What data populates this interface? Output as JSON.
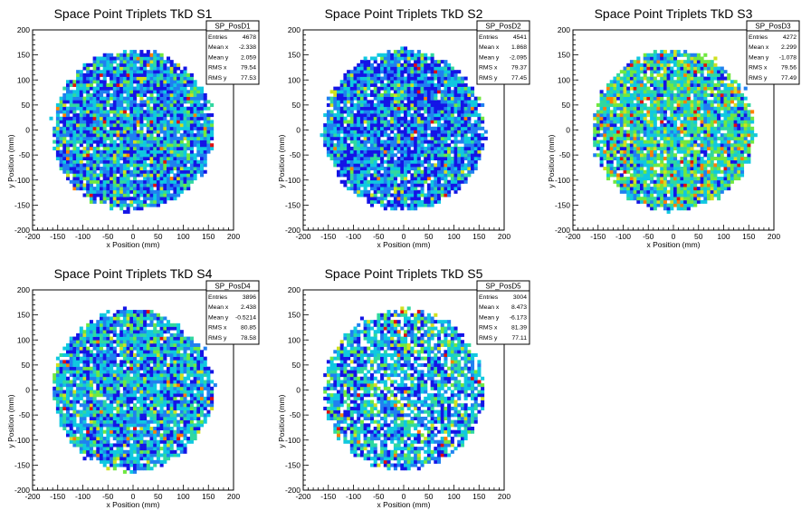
{
  "chart_data": [
    {
      "type": "heatmap",
      "title": "Space Point Triplets TkD S1",
      "xlabel": "x Position (mm)",
      "ylabel": "y Position (mm)",
      "xlim": [
        -200,
        200
      ],
      "ylim": [
        -200,
        200
      ],
      "x_ticks": [
        "-200",
        "-150",
        "-100",
        "-50",
        "0",
        "50",
        "100",
        "150",
        "200"
      ],
      "y_ticks": [
        "-200",
        "-150",
        "-100",
        "-50",
        "0",
        "50",
        "100",
        "150",
        "200"
      ],
      "stats": {
        "name": "SP_PosD1",
        "rows": [
          {
            "label": "Entries",
            "value": "4678"
          },
          {
            "label": "Mean x",
            "value": "-2.338"
          },
          {
            "label": "Mean y",
            "value": "2.059"
          },
          {
            "label": "RMS x",
            "value": "79.54"
          },
          {
            "label": "RMS y",
            "value": "77.53"
          }
        ]
      },
      "entries": 4678,
      "mean_x": -2.338,
      "mean_y": 2.059,
      "rms_x": 79.54,
      "rms_y": 77.53,
      "radius": 160,
      "bins": 60,
      "empty_fraction": 0.06,
      "palette": [
        "#1414e6",
        "#2080f0",
        "#10c8e0",
        "#30d8a0",
        "#70e840",
        "#d0e020",
        "#ff8000",
        "#e01010"
      ],
      "level_weights": [
        0.26,
        0.24,
        0.26,
        0.12,
        0.07,
        0.03,
        0.01,
        0.01
      ]
    },
    {
      "type": "heatmap",
      "title": "Space Point Triplets TkD S2",
      "xlabel": "x Position (mm)",
      "ylabel": "y Position (mm)",
      "xlim": [
        -200,
        200
      ],
      "ylim": [
        -200,
        200
      ],
      "x_ticks": [
        "-200",
        "-150",
        "-100",
        "-50",
        "0",
        "50",
        "100",
        "150",
        "200"
      ],
      "y_ticks": [
        "-200",
        "-150",
        "-100",
        "-50",
        "0",
        "50",
        "100",
        "150",
        "200"
      ],
      "stats": {
        "name": "SP_PosD2",
        "rows": [
          {
            "label": "Entries",
            "value": "4541"
          },
          {
            "label": "Mean x",
            "value": "1.868"
          },
          {
            "label": "Mean y",
            "value": "-2.095"
          },
          {
            "label": "RMS x",
            "value": "79.37"
          },
          {
            "label": "RMS y",
            "value": "77.45"
          }
        ]
      },
      "entries": 4541,
      "mean_x": 1.868,
      "mean_y": -2.095,
      "rms_x": 79.37,
      "rms_y": 77.45,
      "radius": 160,
      "bins": 60,
      "empty_fraction": 0.07,
      "palette": [
        "#1414e6",
        "#2080f0",
        "#10c8e0",
        "#30d8a0",
        "#70e840",
        "#d0e020",
        "#ff8000",
        "#e01010"
      ],
      "level_weights": [
        0.34,
        0.26,
        0.22,
        0.1,
        0.05,
        0.02,
        0.005,
        0.005
      ]
    },
    {
      "type": "heatmap",
      "title": "Space Point Triplets TkD S3",
      "xlabel": "x Position (mm)",
      "ylabel": "y Position (mm)",
      "xlim": [
        -200,
        200
      ],
      "ylim": [
        -200,
        200
      ],
      "x_ticks": [
        "-200",
        "-150",
        "-100",
        "-50",
        "0",
        "50",
        "100",
        "150",
        "200"
      ],
      "y_ticks": [
        "-200",
        "-150",
        "-100",
        "-50",
        "0",
        "50",
        "100",
        "150",
        "200"
      ],
      "stats": {
        "name": "SP_PosD3",
        "rows": [
          {
            "label": "Entries",
            "value": "4272"
          },
          {
            "label": "Mean x",
            "value": "2.299"
          },
          {
            "label": "Mean y",
            "value": "-1.078"
          },
          {
            "label": "RMS x",
            "value": "79.56"
          },
          {
            "label": "RMS y",
            "value": "77.49"
          }
        ]
      },
      "entries": 4272,
      "mean_x": 2.299,
      "mean_y": -1.078,
      "rms_x": 79.56,
      "rms_y": 77.49,
      "radius": 160,
      "bins": 60,
      "empty_fraction": 0.08,
      "palette": [
        "#1414e6",
        "#2080f0",
        "#10c8e0",
        "#30d8a0",
        "#70e840",
        "#d0e020",
        "#ff8000",
        "#e01010"
      ],
      "level_weights": [
        0.1,
        0.12,
        0.24,
        0.22,
        0.18,
        0.08,
        0.04,
        0.02
      ]
    },
    {
      "type": "heatmap",
      "title": "Space Point Triplets TkD S4",
      "xlabel": "x Position (mm)",
      "ylabel": "y Position (mm)",
      "xlim": [
        -200,
        200
      ],
      "ylim": [
        -200,
        200
      ],
      "x_ticks": [
        "-200",
        "-150",
        "-100",
        "-50",
        "0",
        "50",
        "100",
        "150",
        "200"
      ],
      "y_ticks": [
        "-200",
        "-150",
        "-100",
        "-50",
        "0",
        "50",
        "100",
        "150",
        "200"
      ],
      "stats": {
        "name": "SP_PosD4",
        "rows": [
          {
            "label": "Entries",
            "value": "3896"
          },
          {
            "label": "Mean x",
            "value": "2.438"
          },
          {
            "label": "Mean y",
            "value": "-0.5214"
          },
          {
            "label": "RMS x",
            "value": "80.85"
          },
          {
            "label": "RMS y",
            "value": "78.58"
          }
        ]
      },
      "entries": 3896,
      "mean_x": 2.438,
      "mean_y": -0.5214,
      "rms_x": 80.85,
      "rms_y": 78.58,
      "radius": 160,
      "bins": 60,
      "empty_fraction": 0.08,
      "palette": [
        "#1414e6",
        "#2080f0",
        "#10c8e0",
        "#30d8a0",
        "#70e840",
        "#d0e020",
        "#ff8000",
        "#e01010"
      ],
      "level_weights": [
        0.2,
        0.22,
        0.3,
        0.14,
        0.08,
        0.04,
        0.01,
        0.01
      ]
    },
    {
      "type": "heatmap",
      "title": "Space Point Triplets TkD S5",
      "xlabel": "x Position (mm)",
      "ylabel": "y Position (mm)",
      "xlim": [
        -200,
        200
      ],
      "ylim": [
        -200,
        200
      ],
      "x_ticks": [
        "-200",
        "-150",
        "-100",
        "-50",
        "0",
        "50",
        "100",
        "150",
        "200"
      ],
      "y_ticks": [
        "-200",
        "-150",
        "-100",
        "-50",
        "0",
        "50",
        "100",
        "150",
        "200"
      ],
      "stats": {
        "name": "SP_PosD5",
        "rows": [
          {
            "label": "Entries",
            "value": "3004"
          },
          {
            "label": "Mean x",
            "value": "8.473"
          },
          {
            "label": "Mean y",
            "value": "-6.173"
          },
          {
            "label": "RMS x",
            "value": "81.39"
          },
          {
            "label": "RMS y",
            "value": "77.11"
          }
        ]
      },
      "entries": 3004,
      "mean_x": 8.473,
      "mean_y": -6.173,
      "rms_x": 81.39,
      "rms_y": 77.11,
      "radius": 160,
      "bins": 60,
      "empty_fraction": 0.22,
      "palette": [
        "#1414e6",
        "#2080f0",
        "#10c8e0",
        "#30d8a0",
        "#70e840",
        "#d0e020",
        "#ff8000",
        "#e01010"
      ],
      "level_weights": [
        0.22,
        0.2,
        0.3,
        0.14,
        0.08,
        0.04,
        0.01,
        0.01
      ]
    }
  ]
}
